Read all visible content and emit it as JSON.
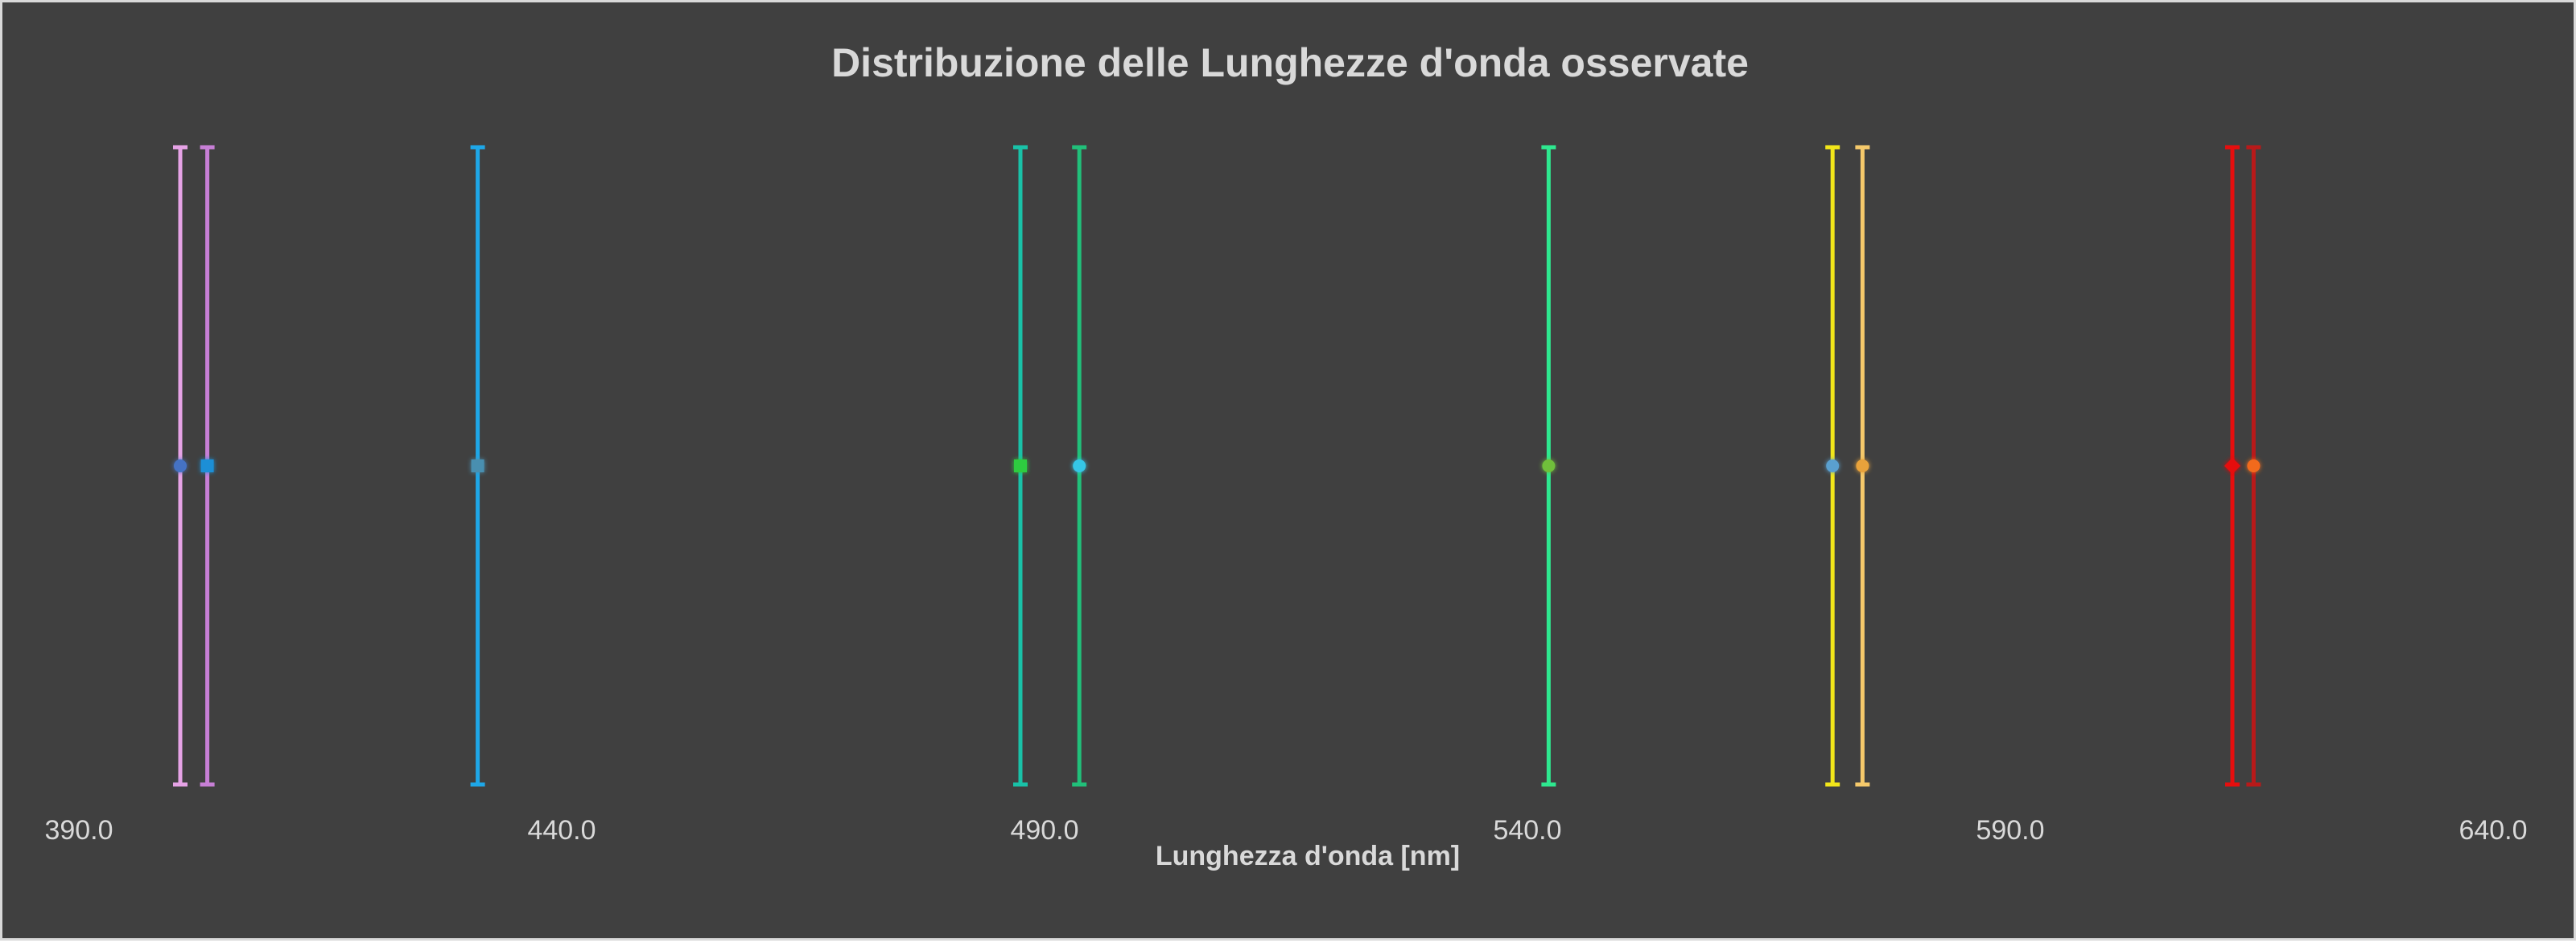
{
  "chart_data": {
    "type": "scatter",
    "title": "Distribuzione delle Lunghezze d'onda osservate",
    "xlabel": "Lunghezza d'onda [nm]",
    "ylabel": "",
    "xlim": [
      390,
      640
    ],
    "ylim": [
      0,
      2
    ],
    "x_ticks": [
      "390.0",
      "440.0",
      "490.0",
      "540.0",
      "590.0",
      "640.0"
    ],
    "grid": false,
    "legend": "none",
    "background": "#404040",
    "series": [
      {
        "x": 400.5,
        "y": 1,
        "error_y": 1,
        "line_color": "#e6a3e6",
        "marker_color": "#4472c4",
        "marker": "circle"
      },
      {
        "x": 403.3,
        "y": 1,
        "error_y": 1,
        "line_color": "#c77fd6",
        "marker_color": "#1f8fd6",
        "marker": "square"
      },
      {
        "x": 431.3,
        "y": 1,
        "error_y": 1,
        "line_color": "#1ea7e8",
        "marker_color": "#4a8fb0",
        "marker": "square"
      },
      {
        "x": 487.5,
        "y": 1,
        "error_y": 1,
        "line_color": "#19c2a8",
        "marker_color": "#2ecc40",
        "marker": "square"
      },
      {
        "x": 493.6,
        "y": 1,
        "error_y": 1,
        "line_color": "#21c07a",
        "marker_color": "#36c6e6",
        "marker": "circle"
      },
      {
        "x": 542.2,
        "y": 1,
        "error_y": 1,
        "line_color": "#2ee88f",
        "marker_color": "#6fbf3a",
        "marker": "circle"
      },
      {
        "x": 571.6,
        "y": 1,
        "error_y": 1,
        "line_color": "#f2e61a",
        "marker_color": "#5aa0d0",
        "marker": "circle"
      },
      {
        "x": 574.7,
        "y": 1,
        "error_y": 1,
        "line_color": "#f5c96b",
        "marker_color": "#e8a23a",
        "marker": "circle"
      },
      {
        "x": 613.0,
        "y": 1,
        "error_y": 1,
        "line_color": "#e60e0e",
        "marker_color": "#e60e0e",
        "marker": "diamond"
      },
      {
        "x": 615.2,
        "y": 1,
        "error_y": 1,
        "line_color": "#b81a1a",
        "marker_color": "#f26a1f",
        "marker": "circle"
      }
    ]
  }
}
